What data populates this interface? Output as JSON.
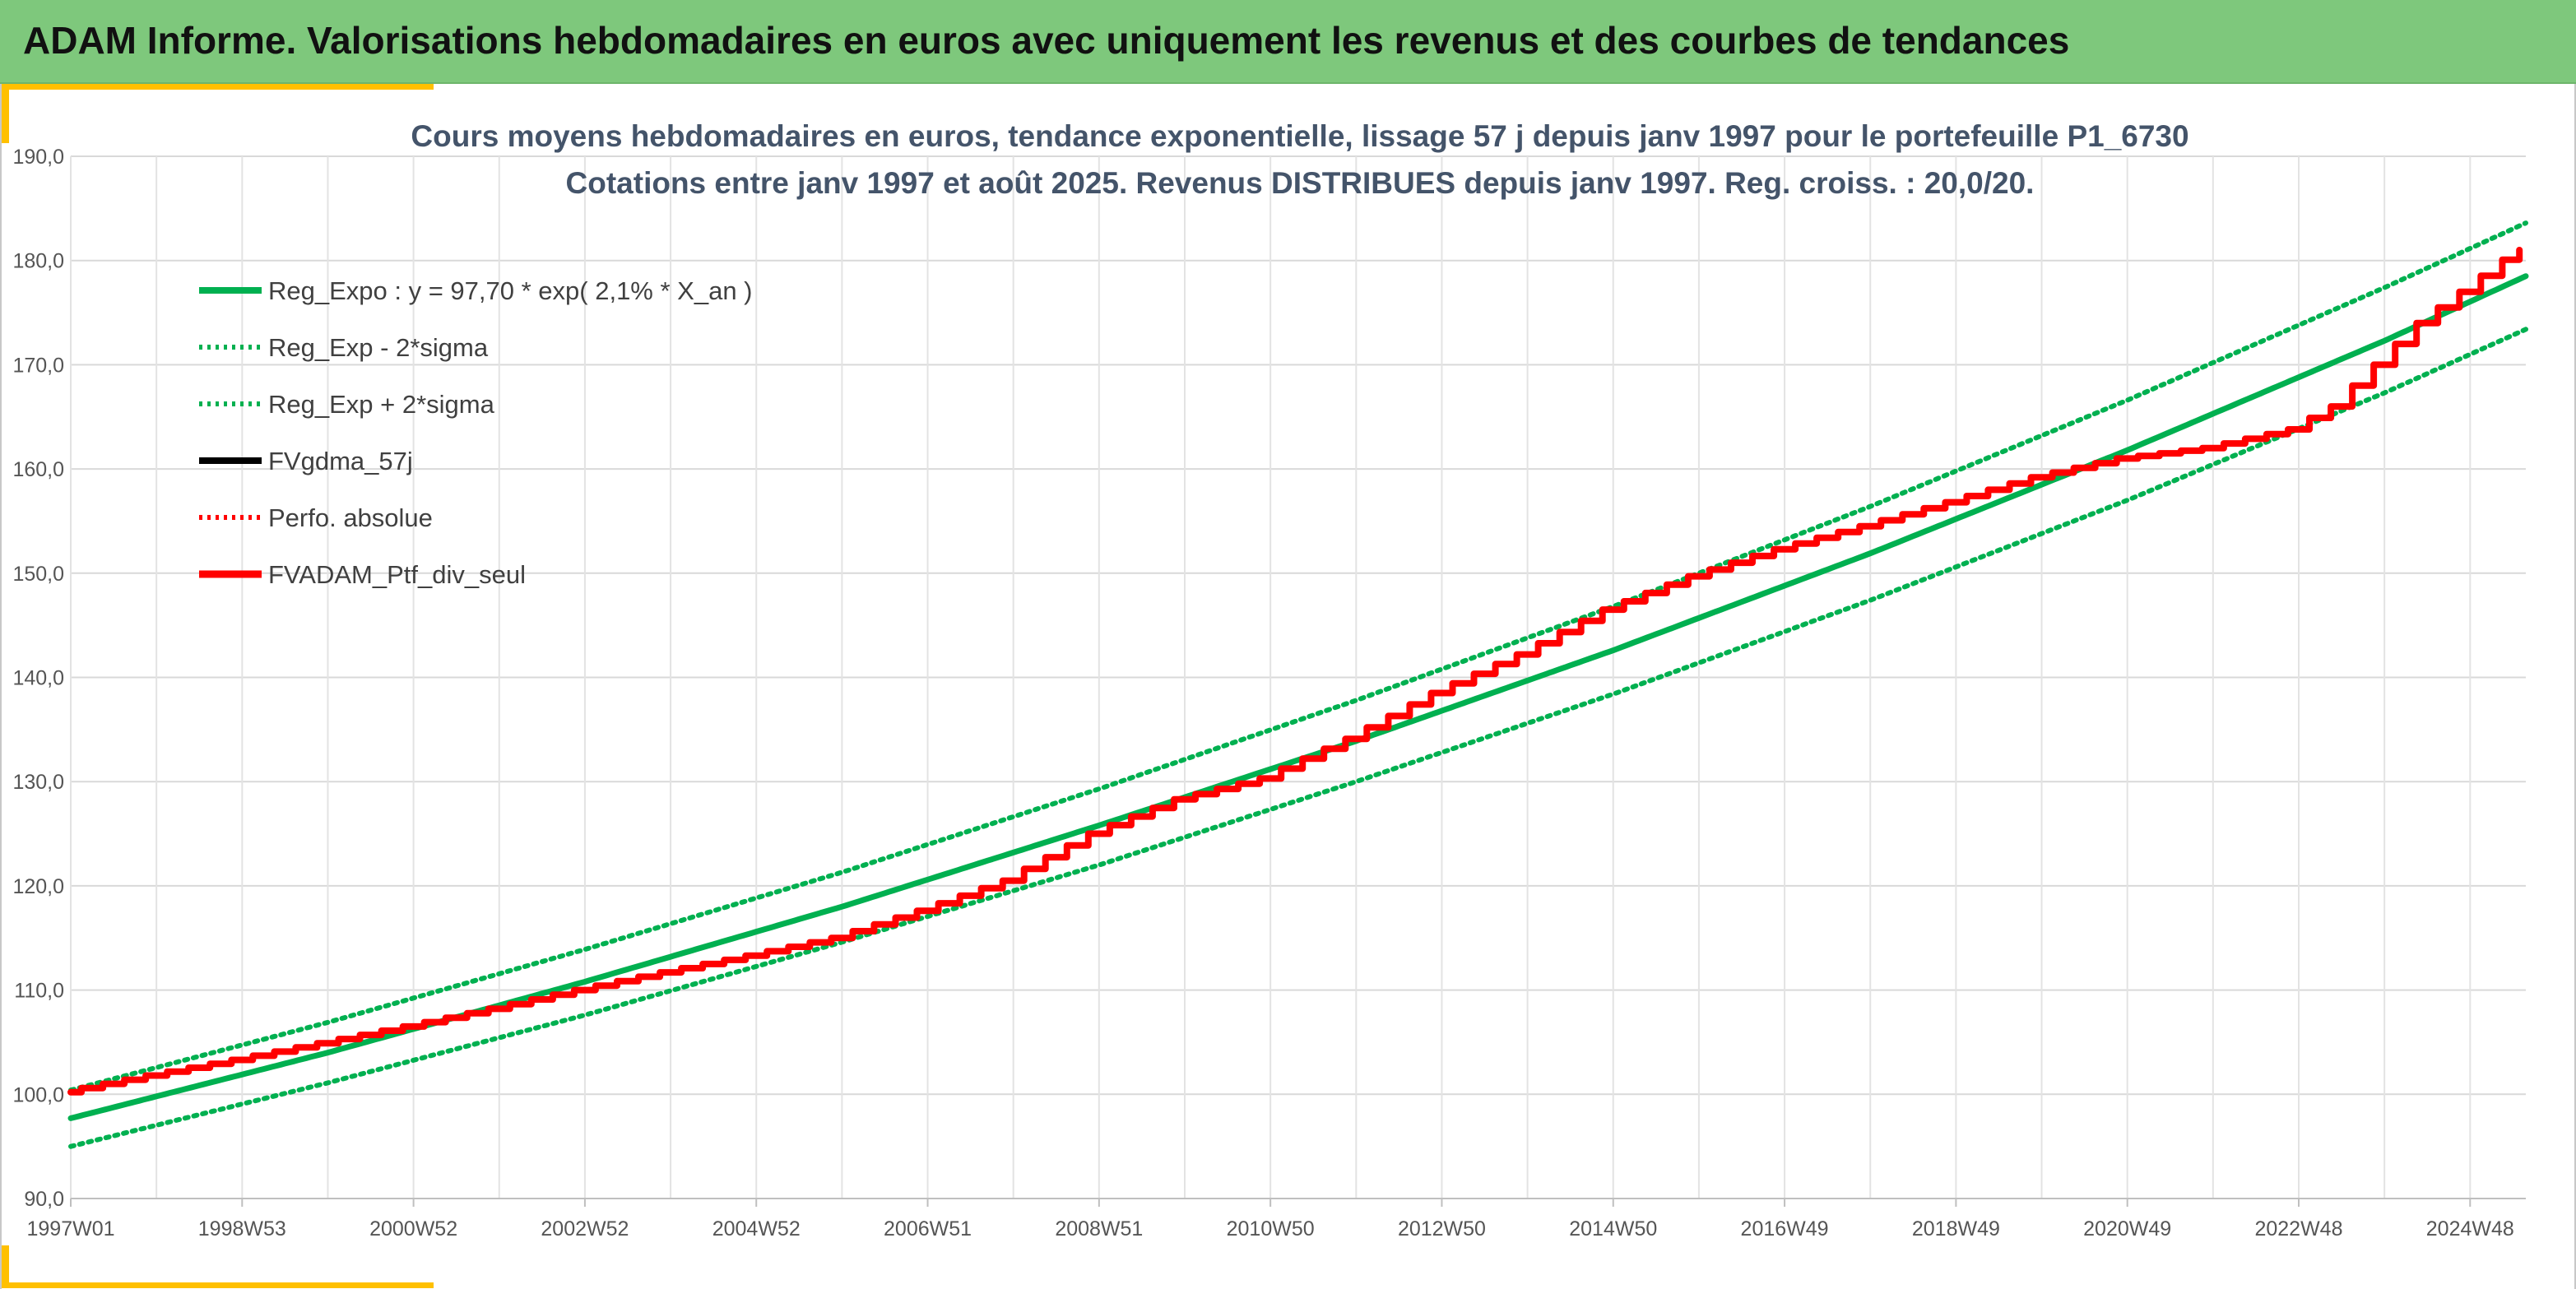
{
  "banner": {
    "title": "ADAM Informe. Valorisations hebdomadaires en euros avec uniquement les revenus et des courbes de tendances",
    "color": "#7ec87c",
    "accent_color": "#ffc000"
  },
  "chart_data": {
    "type": "line",
    "title_lines": [
      "Cours moyens hebdomadaires en euros, tendance exponentielle, lissage 57 j depuis janv 1997 pour le portefeuille P1_6730",
      "Cotations entre janv 1997 et août 2025. Revenus DISTRIBUES depuis janv 1997. Reg. croiss. : 20,0/20."
    ],
    "xlabel": "",
    "ylabel": "",
    "ylim": [
      90,
      190
    ],
    "y_ticks": [
      "90,0",
      "100,0",
      "110,0",
      "120,0",
      "130,0",
      "140,0",
      "150,0",
      "160,0",
      "170,0",
      "180,0",
      "190,0"
    ],
    "x_range_years": [
      1997.0,
      2025.65
    ],
    "x_ticks": [
      {
        "label": "1997W01",
        "year": 1997.0
      },
      {
        "label": "1998W53",
        "year": 1999.0
      },
      {
        "label": "2000W52",
        "year": 2001.0
      },
      {
        "label": "2002W52",
        "year": 2003.0
      },
      {
        "label": "2004W52",
        "year": 2005.0
      },
      {
        "label": "2006W51",
        "year": 2007.0
      },
      {
        "label": "2008W51",
        "year": 2009.0
      },
      {
        "label": "2010W50",
        "year": 2011.0
      },
      {
        "label": "2012W50",
        "year": 2013.0
      },
      {
        "label": "2014W50",
        "year": 2015.0
      },
      {
        "label": "2016W49",
        "year": 2017.0
      },
      {
        "label": "2018W49",
        "year": 2019.0
      },
      {
        "label": "2020W49",
        "year": 2021.0
      },
      {
        "label": "2022W48",
        "year": 2023.0
      },
      {
        "label": "2024W48",
        "year": 2025.0
      }
    ],
    "grid": true,
    "legend_position": "top-left",
    "series": [
      {
        "name": "Reg_Expo : y = 97,70 * exp( 2,1% *  X_an )",
        "color": "#00b050",
        "style": "solid",
        "x": [
          1997,
          2000,
          2003,
          2006,
          2009,
          2012,
          2015,
          2018,
          2021,
          2024,
          2025.65
        ],
        "y": [
          97.7,
          104.0,
          110.8,
          118.0,
          125.8,
          133.9,
          142.6,
          151.9,
          161.8,
          172.3,
          178.5
        ]
      },
      {
        "name": "Reg_Exp - 2*sigma",
        "color": "#00b050",
        "style": "dotted",
        "x": [
          1997,
          2000,
          2003,
          2006,
          2009,
          2012,
          2015,
          2018,
          2021,
          2024,
          2025.65
        ],
        "y": [
          95.0,
          101.1,
          107.6,
          114.6,
          122.0,
          130.0,
          138.4,
          147.4,
          157.0,
          167.3,
          173.4
        ]
      },
      {
        "name": "Reg_Exp + 2*sigma",
        "color": "#00b050",
        "style": "dotted",
        "x": [
          1997,
          2000,
          2003,
          2006,
          2009,
          2012,
          2015,
          2018,
          2021,
          2024,
          2025.65
        ],
        "y": [
          100.4,
          106.9,
          113.9,
          121.3,
          129.3,
          137.8,
          146.8,
          156.4,
          166.6,
          177.4,
          183.6
        ]
      },
      {
        "name": "FVgdma_57j",
        "color": "#000000",
        "style": "solid",
        "x": [
          1997,
          1998,
          1999,
          2000,
          2001,
          2002,
          2003,
          2004,
          2005,
          2006,
          2007,
          2008,
          2009,
          2010,
          2011,
          2012,
          2013,
          2014,
          2015,
          2016,
          2017,
          2018,
          2019,
          2020,
          2021,
          2022,
          2023,
          2023.5,
          2024,
          2024.5,
          2025,
          2025.65
        ],
        "y": [
          100.2,
          101.8,
          103.3,
          104.9,
          106.5,
          108.2,
          110.0,
          111.7,
          113.3,
          115.0,
          117.6,
          120.5,
          125.0,
          128.3,
          130.3,
          134.1,
          138.5,
          142.2,
          146.5,
          149.7,
          152.3,
          154.5,
          156.8,
          159.2,
          161.0,
          162.0,
          163.8,
          166.0,
          170.0,
          174.0,
          177.0,
          181.0
        ]
      },
      {
        "name": "Perfo. absolue",
        "color": "#ff0000",
        "style": "dotted",
        "x": [
          1997,
          1998,
          1999,
          2000,
          2001,
          2002,
          2003,
          2004,
          2005,
          2006,
          2007,
          2008,
          2009,
          2010,
          2011,
          2012,
          2013,
          2014,
          2015,
          2016,
          2017,
          2018,
          2019,
          2020,
          2021,
          2022,
          2023,
          2023.5,
          2024,
          2024.5,
          2025,
          2025.65
        ],
        "y": [
          100.2,
          101.8,
          103.3,
          104.9,
          106.5,
          108.2,
          110.0,
          111.7,
          113.3,
          115.0,
          117.6,
          120.5,
          125.0,
          128.3,
          130.3,
          134.1,
          138.5,
          142.2,
          146.5,
          149.7,
          152.3,
          154.5,
          156.8,
          159.2,
          161.0,
          162.0,
          163.8,
          166.0,
          170.0,
          174.0,
          177.0,
          181.0
        ]
      },
      {
        "name": "FVADAM_Ptf_div_seul",
        "color": "#ff0000",
        "style": "solid",
        "x": [
          1997,
          1998,
          1999,
          2000,
          2001,
          2002,
          2003,
          2004,
          2005,
          2006,
          2007,
          2008,
          2009,
          2010,
          2011,
          2012,
          2013,
          2014,
          2015,
          2016,
          2017,
          2018,
          2019,
          2020,
          2021,
          2022,
          2023,
          2023.5,
          2024,
          2024.5,
          2025,
          2025.65
        ],
        "y": [
          100.2,
          101.8,
          103.3,
          104.9,
          106.5,
          108.2,
          110.0,
          111.7,
          113.3,
          115.0,
          117.6,
          120.5,
          125.0,
          128.3,
          130.3,
          134.1,
          138.5,
          142.2,
          146.5,
          149.7,
          152.3,
          154.5,
          156.8,
          159.2,
          161.0,
          162.0,
          163.8,
          166.0,
          170.0,
          174.0,
          177.0,
          181.0
        ]
      }
    ]
  }
}
